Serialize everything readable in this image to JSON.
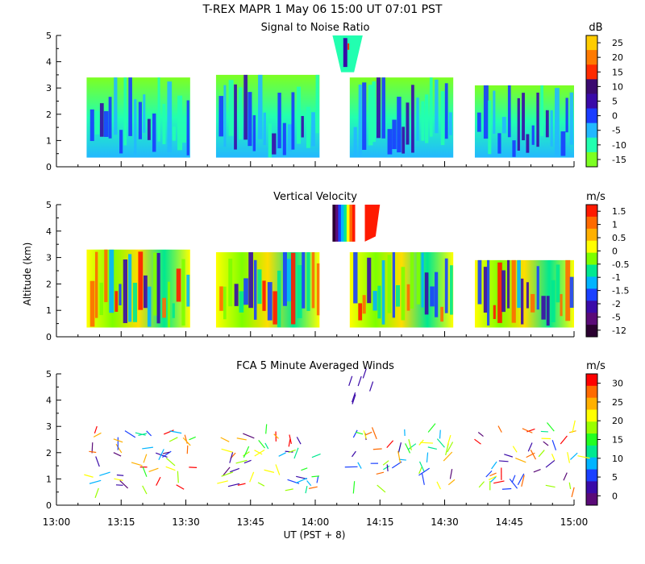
{
  "figure": {
    "title": "T-REX   MAPR   1 May 06   15:00 UT   07:01   PST",
    "y_axis_label": "Altitude (km)",
    "x_axis_label": "UT  (PST + 8)"
  },
  "chart_data": [
    {
      "type": "heatmap",
      "title": "Signal to Noise Ratio",
      "units": "dB",
      "ylabel": "Altitude (km)",
      "ylim": [
        0,
        5
      ],
      "y_ticks": [
        "0",
        "1",
        "2",
        "3",
        "4",
        "5"
      ],
      "colorbar_ticks": [
        "25",
        "20",
        "15",
        "10",
        "5",
        "0",
        "-5",
        "-10",
        "-15"
      ],
      "colorbar_colors": [
        "#ffcc00",
        "#ff7a00",
        "#ff2b00",
        "#3b0a70",
        "#3a0aa8",
        "#1a3cff",
        "#22b8ff",
        "#22ffb0",
        "#7dff22"
      ]
    },
    {
      "type": "heatmap",
      "title": "Vertical Velocity",
      "units": "m/s",
      "ylabel": "Altitude (km)",
      "ylim": [
        0,
        5
      ],
      "y_ticks": [
        "0",
        "1",
        "2",
        "3",
        "4",
        "5"
      ],
      "colorbar_ticks": [
        "1.5",
        "1",
        "0.5",
        "0",
        "-0.5",
        "-1",
        "-1.5",
        "-2",
        "-5",
        "-12"
      ],
      "colorbar_colors": [
        "#ff1a00",
        "#ff6a00",
        "#ffb000",
        "#ffff00",
        "#7dff00",
        "#00e890",
        "#00b4ff",
        "#1a40ff",
        "#3a0aa8",
        "#5a0a78",
        "#2a0030"
      ]
    },
    {
      "type": "scatter",
      "title": "FCA 5 Minute Averaged Winds",
      "units": "m/s",
      "ylabel": "Altitude (km)",
      "ylim": [
        0,
        5
      ],
      "y_ticks": [
        "0",
        "1",
        "2",
        "3",
        "4",
        "5"
      ],
      "colorbar_ticks": [
        "30",
        "25",
        "20",
        "15",
        "10",
        "5",
        "0"
      ],
      "colorbar_colors": [
        "#ff0000",
        "#ff6a00",
        "#ffb000",
        "#ffff00",
        "#9aff00",
        "#22ff22",
        "#00e890",
        "#00b4ff",
        "#1a40ff",
        "#3a0aa8",
        "#5a0a78"
      ]
    }
  ],
  "x_axis": {
    "range": [
      "13:00",
      "15:00"
    ],
    "ticks": [
      "13:00",
      "13:15",
      "13:30",
      "13:45",
      "14:00",
      "14:15",
      "14:30",
      "14:45",
      "15:00"
    ]
  }
}
